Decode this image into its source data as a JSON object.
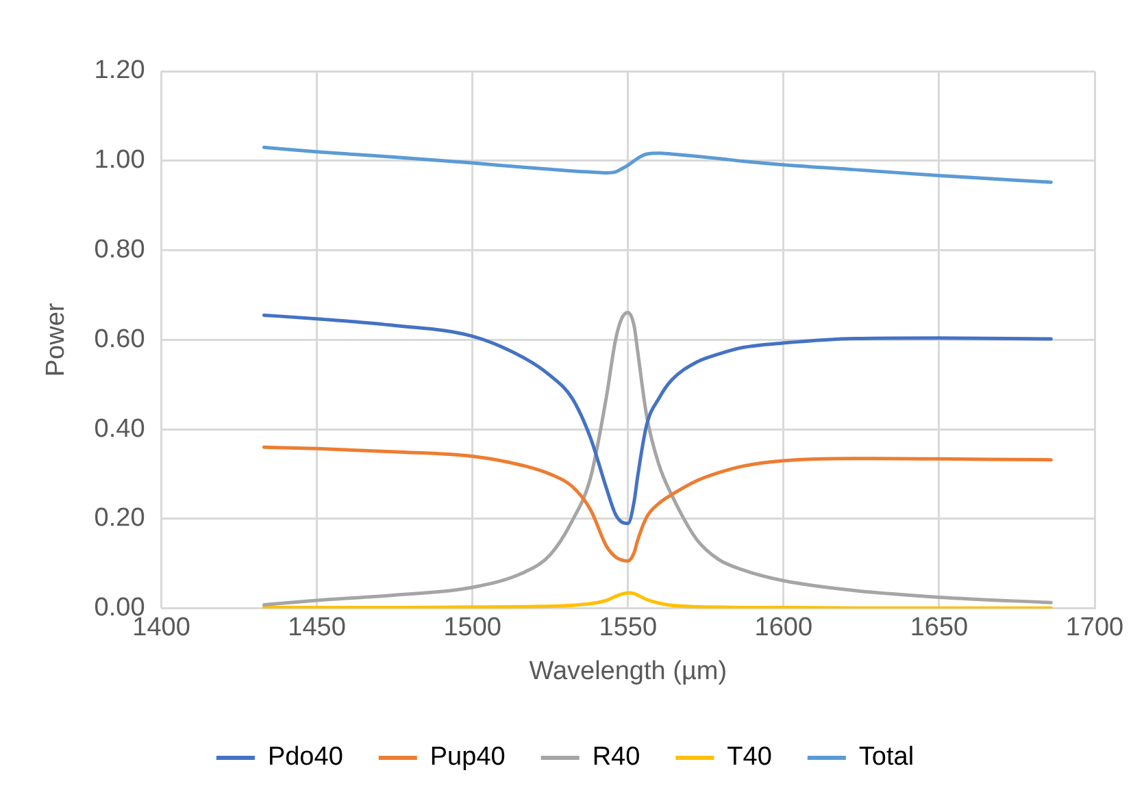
{
  "chart_data": {
    "type": "line",
    "xlabel": "Wavelength (µm)",
    "ylabel": "Power",
    "x": [
      1433,
      1450,
      1475,
      1500,
      1517,
      1525,
      1532,
      1538,
      1543,
      1546,
      1548,
      1550,
      1552,
      1553,
      1556,
      1560,
      1564,
      1572,
      1579,
      1587,
      1600,
      1623,
      1650,
      1686
    ],
    "series": [
      {
        "name": "Pdo40",
        "color": "#4472c4",
        "values": [
          0.655,
          0.647,
          0.632,
          0.608,
          0.558,
          0.52,
          0.47,
          0.38,
          0.27,
          0.21,
          0.193,
          0.19,
          0.24,
          0.29,
          0.41,
          0.47,
          0.51,
          0.55,
          0.568,
          0.583,
          0.593,
          0.603,
          0.604,
          0.602
        ]
      },
      {
        "name": "Pup40",
        "color": "#ed7d31",
        "values": [
          0.36,
          0.357,
          0.35,
          0.34,
          0.318,
          0.3,
          0.273,
          0.22,
          0.14,
          0.115,
          0.108,
          0.106,
          0.125,
          0.15,
          0.204,
          0.235,
          0.254,
          0.285,
          0.303,
          0.318,
          0.33,
          0.335,
          0.334,
          0.332
        ]
      },
      {
        "name": "R40",
        "color": "#a5a5a5",
        "values": [
          0.008,
          0.018,
          0.03,
          0.047,
          0.082,
          0.12,
          0.195,
          0.293,
          0.47,
          0.6,
          0.648,
          0.661,
          0.63,
          0.58,
          0.43,
          0.32,
          0.254,
          0.155,
          0.11,
          0.086,
          0.062,
          0.04,
          0.025,
          0.013
        ]
      },
      {
        "name": "T40",
        "color": "#ffc000",
        "values": [
          0.002,
          0.002,
          0.002,
          0.003,
          0.004,
          0.005,
          0.007,
          0.011,
          0.018,
          0.027,
          0.032,
          0.035,
          0.033,
          0.03,
          0.02,
          0.012,
          0.007,
          0.004,
          0.003,
          0.002,
          0.002,
          0.001,
          0.001,
          0.001
        ]
      },
      {
        "name": "Total",
        "color": "#5b9bd5",
        "values": [
          1.03,
          1.02,
          1.008,
          0.995,
          0.985,
          0.981,
          0.977,
          0.975,
          0.973,
          0.975,
          0.982,
          0.99,
          1.0,
          1.005,
          1.015,
          1.017,
          1.015,
          1.01,
          1.005,
          0.999,
          0.991,
          0.98,
          0.967,
          0.952
        ]
      }
    ],
    "xlim": [
      1400,
      1700
    ],
    "xticks": [
      1400,
      1450,
      1500,
      1550,
      1600,
      1650,
      1700
    ],
    "ylim": [
      0,
      1.2
    ],
    "yticks": [
      {
        "value": 0,
        "label": "0.00"
      },
      {
        "value": 0.2,
        "label": "0.20"
      },
      {
        "value": 0.4,
        "label": "0.40"
      },
      {
        "value": 0.6,
        "label": "0.60"
      },
      {
        "value": 0.8,
        "label": "0.80"
      },
      {
        "value": 1,
        "label": "1.00"
      },
      {
        "value": 1.2,
        "label": "1.20"
      }
    ],
    "grid": true,
    "legend": "bottom",
    "marker": "none",
    "line_style": "solid"
  }
}
